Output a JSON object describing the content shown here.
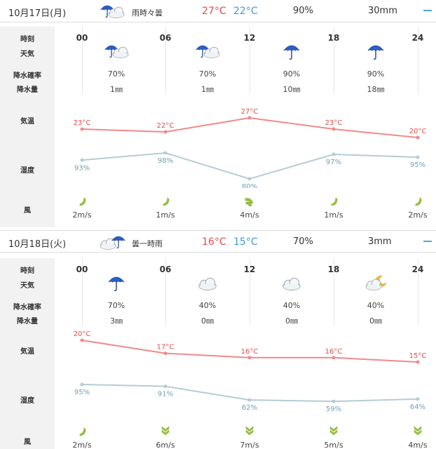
{
  "days": [
    {
      "header": {
        "date": "10月17日(月)",
        "weather": "雨時々曇",
        "weather_icon": "rain-cloud-icon",
        "max_temp": "27°C",
        "min_temp": "22°C",
        "precip_prob": "90%",
        "precip": "30mm"
      },
      "labels": {
        "time": "時刻",
        "weather": "天気",
        "prob": "降水確率",
        "amount": "降水量",
        "temp": "気温",
        "humidity": "湿度",
        "wind": "風"
      },
      "slots": [
        {
          "time": "00",
          "icon": "umbrella-cloud-icon",
          "prob": "70%",
          "amount": "1㎜",
          "temp": 23,
          "temp_label": "23°C",
          "humidity": 93,
          "humidity_label": "93%",
          "wind_icon": "wind-light-icon",
          "wind": "2m/s"
        },
        {
          "time": "06",
          "icon": "umbrella-cloud-icon",
          "prob": "70%",
          "amount": "1㎜",
          "temp": 22,
          "temp_label": "22°C",
          "humidity": 98,
          "humidity_label": "98%",
          "wind_icon": "wind-light-icon",
          "wind": "1m/s"
        },
        {
          "time": "12",
          "icon": "umbrella-icon",
          "prob": "90%",
          "amount": "10㎜",
          "temp": 27,
          "temp_label": "27°C",
          "humidity": 80,
          "humidity_label": "80%",
          "wind_icon": "wind-moderate-icon",
          "wind": "4m/s"
        },
        {
          "time": "18",
          "icon": "umbrella-icon",
          "prob": "90%",
          "amount": "18㎜",
          "temp": 23,
          "temp_label": "23°C",
          "humidity": 97,
          "humidity_label": "97%",
          "wind_icon": "wind-light-icon",
          "wind": "1m/s"
        },
        {
          "time": "24",
          "icon": "",
          "prob": "",
          "amount": "",
          "temp": 20,
          "temp_label": "20°C",
          "humidity": 95,
          "humidity_label": "95%",
          "wind_icon": "wind-light-icon",
          "wind": "2m/s"
        }
      ]
    },
    {
      "header": {
        "date": "10月18日(火)",
        "weather": "曇一時雨",
        "weather_icon": "cloud-rain-icon",
        "max_temp": "16°C",
        "min_temp": "15°C",
        "precip_prob": "70%",
        "precip": "3mm"
      },
      "labels": {
        "time": "時刻",
        "weather": "天気",
        "prob": "降水確率",
        "amount": "降水量",
        "temp": "気温",
        "humidity": "湿度",
        "wind": "風"
      },
      "slots": [
        {
          "time": "00",
          "icon": "umbrella-icon",
          "prob": "70%",
          "amount": "3㎜",
          "temp": 20,
          "temp_label": "20°C",
          "humidity": 95,
          "humidity_label": "95%",
          "wind_icon": "wind-light-icon",
          "wind": "2m/s"
        },
        {
          "time": "06",
          "icon": "cloud-icon",
          "prob": "40%",
          "amount": "0㎜",
          "temp": 17,
          "temp_label": "17°C",
          "humidity": 91,
          "humidity_label": "91%",
          "wind_icon": "wind-strong-icon",
          "wind": "6m/s"
        },
        {
          "time": "12",
          "icon": "cloud-icon",
          "prob": "40%",
          "amount": "0㎜",
          "temp": 16,
          "temp_label": "16°C",
          "humidity": 62,
          "humidity_label": "62%",
          "wind_icon": "wind-strong-icon",
          "wind": "7m/s"
        },
        {
          "time": "18",
          "icon": "cloud-moon-icon",
          "prob": "40%",
          "amount": "0㎜",
          "temp": 16,
          "temp_label": "16°C",
          "humidity": 59,
          "humidity_label": "59%",
          "wind_icon": "wind-strong-icon",
          "wind": "5m/s"
        },
        {
          "time": "24",
          "icon": "",
          "prob": "",
          "amount": "",
          "temp": 15,
          "temp_label": "15°C",
          "humidity": 64,
          "humidity_label": "64%",
          "wind_icon": "wind-strong-icon",
          "wind": "4m/s"
        }
      ]
    }
  ],
  "colors": {
    "temp_line": "#f08a8a",
    "temp_text": "#e34b4b",
    "humidity_line": "#b4ccd4",
    "humidity_text": "#6fa0b4",
    "max": "#e34b4b",
    "min": "#3c9ad8",
    "wind": "#9ac43c"
  }
}
